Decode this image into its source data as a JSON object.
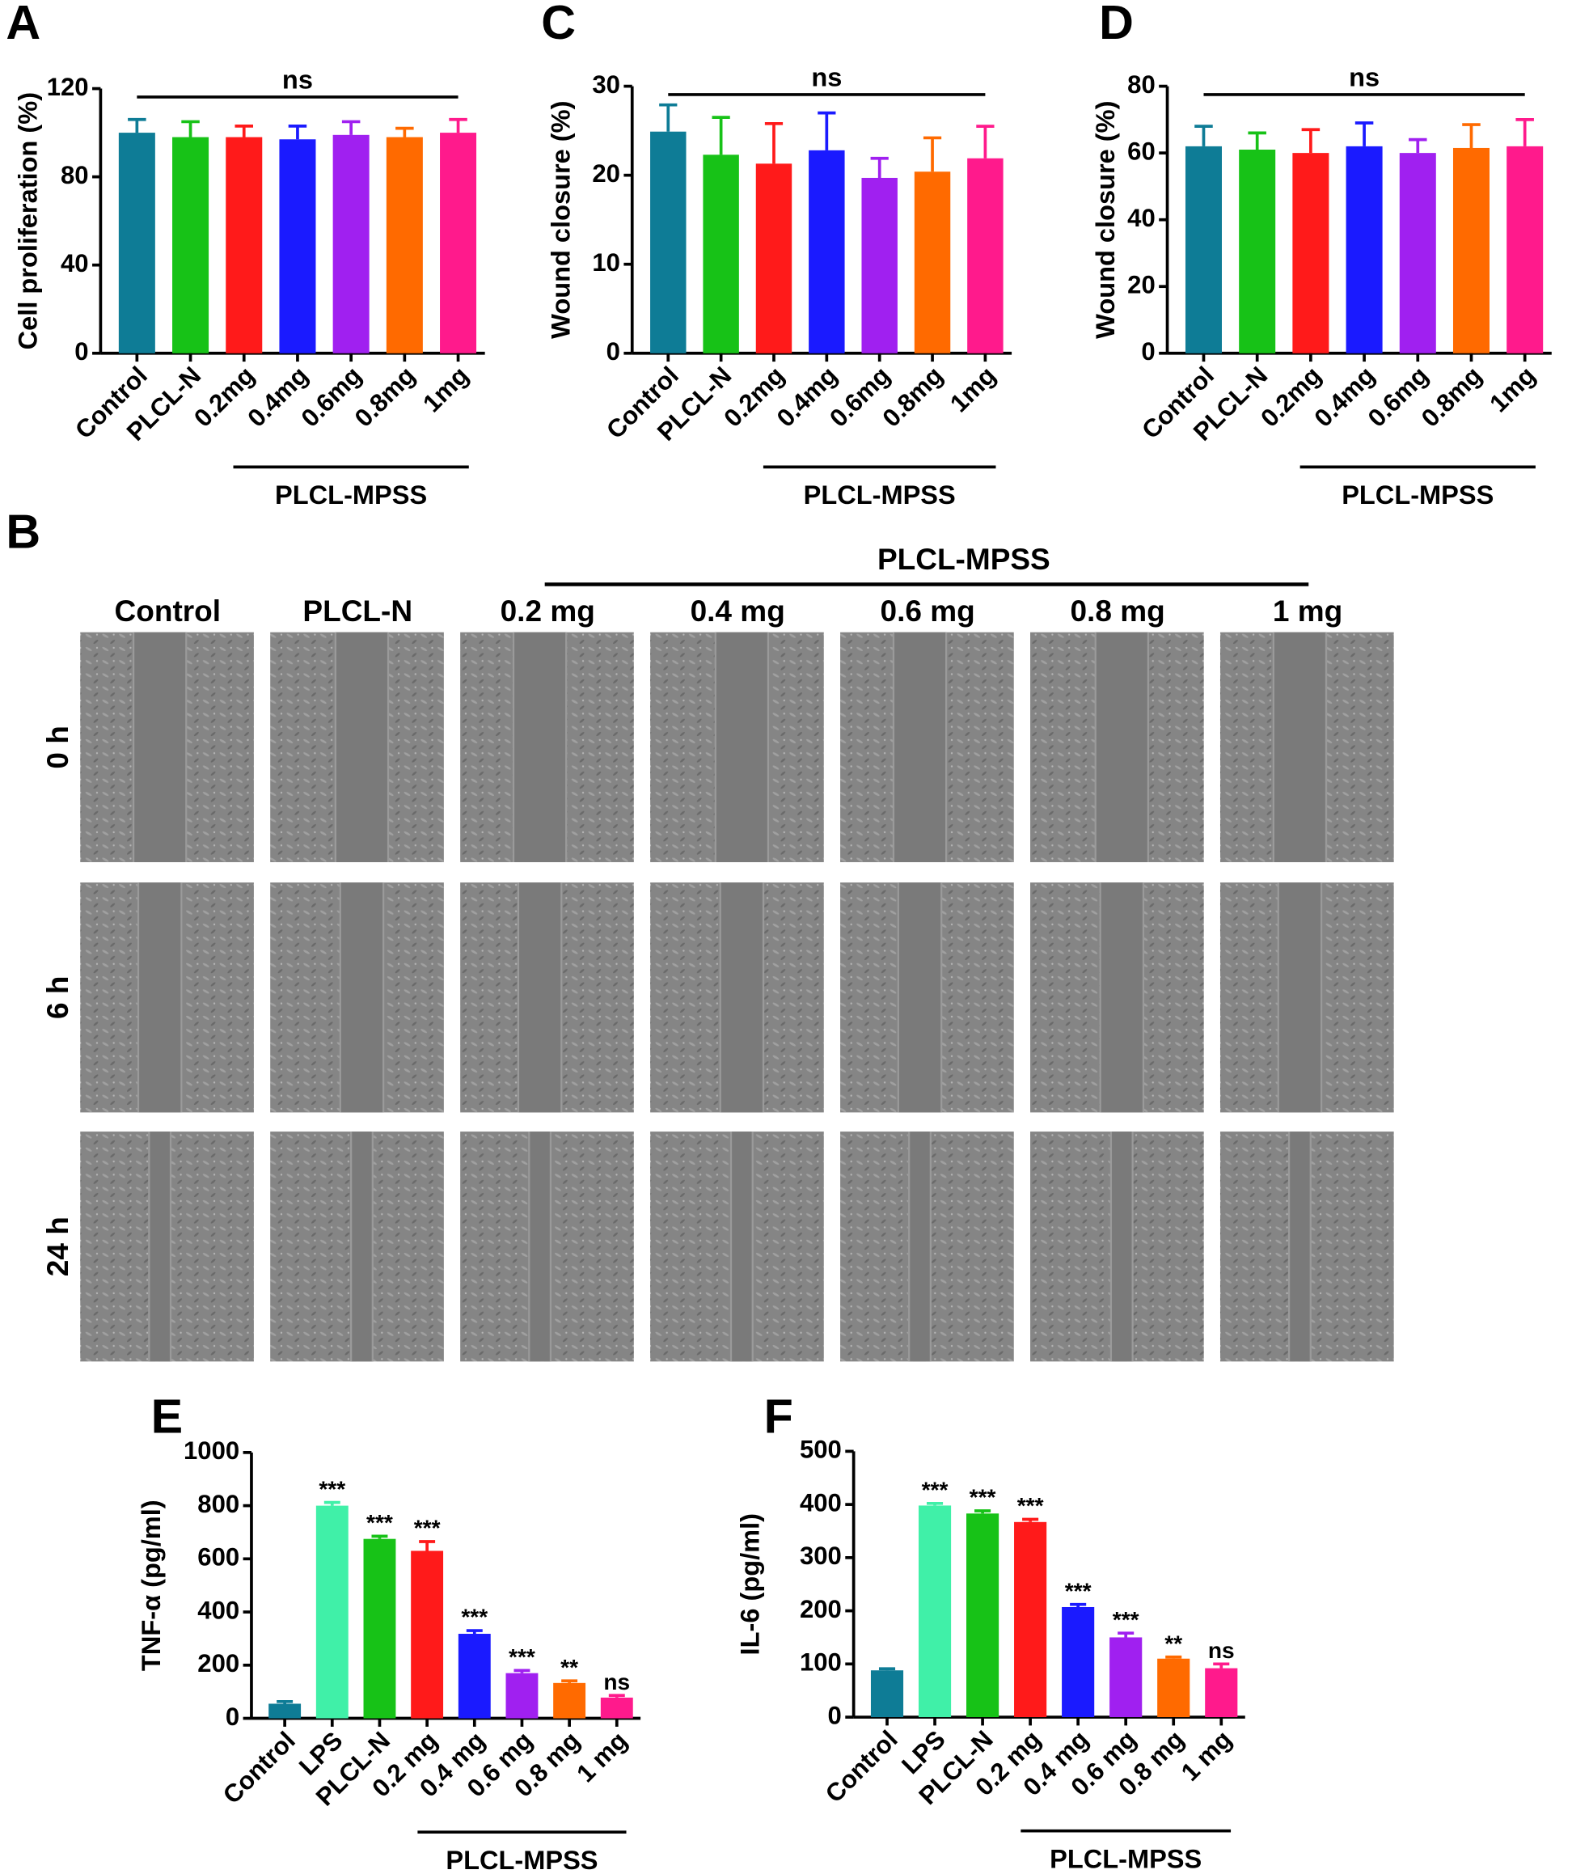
{
  "chart_data": [
    {
      "type": "bar",
      "panel": "A",
      "ylabel": "Cell proliferation (%)",
      "categories": [
        "Control",
        "PLCL-N",
        "0.2mg",
        "0.4mg",
        "0.6mg",
        "0.8mg",
        "1mg"
      ],
      "values": [
        100,
        98,
        98,
        97,
        99,
        98,
        100
      ],
      "errors": [
        6,
        7,
        5,
        6,
        6,
        4,
        6
      ],
      "colors": [
        "#0e7c96",
        "#17c217",
        "#ff1a1a",
        "#1a1aff",
        "#a020f0",
        "#ff6a00",
        "#ff1a8c"
      ],
      "ylim": [
        0,
        120
      ],
      "yticks": [
        0,
        40,
        80,
        120
      ],
      "annotation": "ns",
      "group": "PLCL-MPSS"
    },
    {
      "type": "bar",
      "panel": "C",
      "ylabel": "Wound closure (%)",
      "categories": [
        "Control",
        "PLCL-N",
        "0.2mg",
        "0.4mg",
        "0.6mg",
        "0.8mg",
        "1mg"
      ],
      "values": [
        24.9,
        22.3,
        21.3,
        22.8,
        19.7,
        20.4,
        21.9
      ],
      "errors": [
        3,
        4.2,
        4.5,
        4.2,
        2.2,
        3.8,
        3.6
      ],
      "colors": [
        "#0e7c96",
        "#17c217",
        "#ff1a1a",
        "#1a1aff",
        "#a020f0",
        "#ff6a00",
        "#ff1a8c"
      ],
      "ylim": [
        0,
        30
      ],
      "yticks": [
        0,
        10,
        20,
        30
      ],
      "annotation": "ns",
      "group": "PLCL-MPSS"
    },
    {
      "type": "bar",
      "panel": "D",
      "ylabel": "Wound closure (%)",
      "categories": [
        "Control",
        "PLCL-N",
        "0.2mg",
        "0.4mg",
        "0.6mg",
        "0.8mg",
        "1mg"
      ],
      "values": [
        62,
        61,
        60,
        62,
        60,
        61.5,
        62
      ],
      "errors": [
        6,
        5,
        7,
        7,
        4,
        7,
        8
      ],
      "colors": [
        "#0e7c96",
        "#17c217",
        "#ff1a1a",
        "#1a1aff",
        "#a020f0",
        "#ff6a00",
        "#ff1a8c"
      ],
      "ylim": [
        0,
        80
      ],
      "yticks": [
        0,
        20,
        40,
        60,
        80
      ],
      "annotation": "ns",
      "group": "PLCL-MPSS"
    },
    {
      "type": "bar",
      "panel": "E",
      "ylabel": "TNF-α (pg/ml)",
      "categories": [
        "Control",
        "LPS",
        "PLCL-N",
        "0.2 mg",
        "0.4 mg",
        "0.6 mg",
        "0.8 mg",
        "1 mg"
      ],
      "values": [
        55,
        800,
        675,
        630,
        318,
        170,
        133,
        78
      ],
      "errors": [
        8,
        12,
        10,
        35,
        12,
        10,
        8,
        8
      ],
      "colors": [
        "#0e7c96",
        "#40f0a8",
        "#17c217",
        "#ff1a1a",
        "#1a1aff",
        "#a020f0",
        "#ff6a00",
        "#ff1a8c"
      ],
      "significance": [
        null,
        "***",
        "***",
        "***",
        "***",
        "***",
        "**",
        "ns"
      ],
      "ylim": [
        0,
        1000
      ],
      "yticks": [
        0,
        200,
        400,
        600,
        800,
        1000
      ],
      "group": "PLCL-MPSS"
    },
    {
      "type": "bar",
      "panel": "F",
      "ylabel": "IL-6 (pg/ml)",
      "categories": [
        "Control",
        "LPS",
        "PLCL-N",
        "0.2 mg",
        "0.4 mg",
        "0.6 mg",
        "0.8 mg",
        "1 mg"
      ],
      "values": [
        88,
        398,
        383,
        367,
        207,
        150,
        110,
        92
      ],
      "errors": [
        3,
        4,
        5,
        5,
        5,
        8,
        3,
        8
      ],
      "colors": [
        "#0e7c96",
        "#40f0a8",
        "#17c217",
        "#ff1a1a",
        "#1a1aff",
        "#a020f0",
        "#ff6a00",
        "#ff1a8c"
      ],
      "significance": [
        null,
        "***",
        "***",
        "***",
        "***",
        "***",
        "**",
        "ns"
      ],
      "ylim": [
        0,
        500
      ],
      "yticks": [
        0,
        100,
        200,
        300,
        400,
        500
      ],
      "group": "PLCL-MPSS"
    }
  ],
  "panel_b": {
    "label": "B",
    "group": "PLCL-MPSS",
    "columns": [
      "Control",
      "PLCL-N",
      "0.2 mg",
      "0.4 mg",
      "0.6 mg",
      "0.8 mg",
      "1 mg"
    ],
    "rows": [
      "0 h",
      "6 h",
      "24 h"
    ]
  }
}
